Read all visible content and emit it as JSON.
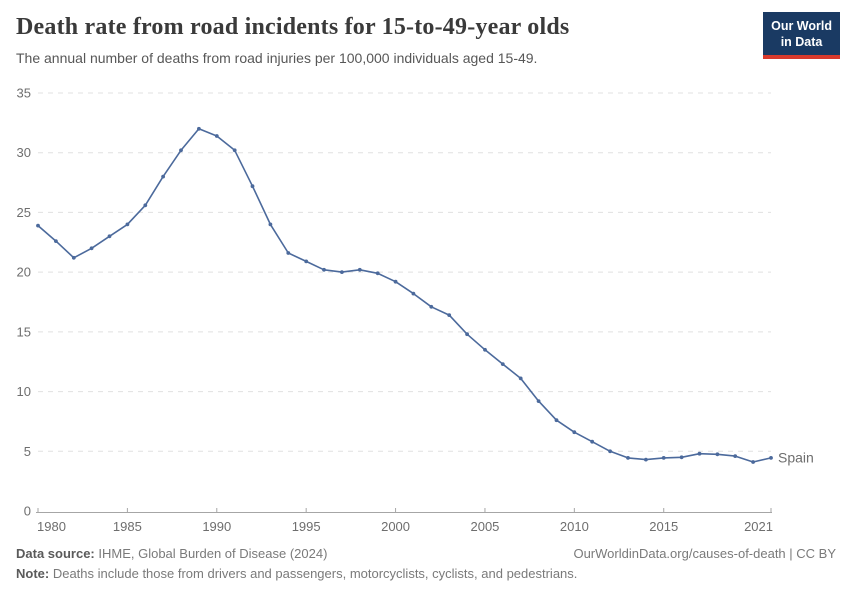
{
  "header": {
    "title": "Death rate from road incidents for 15-to-49-year olds",
    "subtitle": "The annual number of deaths from road injuries per 100,000 individuals aged 15-49.",
    "logo": {
      "line1": "Our World",
      "line2": "in Data"
    }
  },
  "colors": {
    "series_line": "#4C6A9C",
    "grid": "#e0e0e0",
    "axis": "#a6a6a6",
    "tick_text": "#6e6e6e",
    "logo_bg": "#1a3a63",
    "logo_accent": "#d93a2d"
  },
  "chart_data": {
    "type": "line",
    "title": "Death rate from road incidents for 15-to-49-year olds",
    "subtitle": "The annual number of deaths from road injuries per 100,000 individuals aged 15-49.",
    "xlabel": "",
    "ylabel": "",
    "xlim": [
      1980,
      2021
    ],
    "ylim": [
      0,
      35
    ],
    "xticks": [
      1980,
      1985,
      1990,
      1995,
      2000,
      2005,
      2010,
      2015,
      2021
    ],
    "yticks": [
      0,
      5,
      10,
      15,
      20,
      25,
      30,
      35
    ],
    "grid": "horizontal-dashed",
    "legend_position": "end-of-line-label",
    "x": [
      1980,
      1981,
      1982,
      1983,
      1984,
      1985,
      1986,
      1987,
      1988,
      1989,
      1990,
      1991,
      1992,
      1993,
      1994,
      1995,
      1996,
      1997,
      1998,
      1999,
      2000,
      2001,
      2002,
      2003,
      2004,
      2005,
      2006,
      2007,
      2008,
      2009,
      2010,
      2011,
      2012,
      2013,
      2014,
      2015,
      2016,
      2017,
      2018,
      2019,
      2020,
      2021
    ],
    "series": [
      {
        "name": "Spain",
        "color": "#4C6A9C",
        "values": [
          23.9,
          22.6,
          21.2,
          22.0,
          23.0,
          24.0,
          25.6,
          28.0,
          30.2,
          32.0,
          31.4,
          30.2,
          27.2,
          24.0,
          21.6,
          20.9,
          20.2,
          20.0,
          20.2,
          19.9,
          19.2,
          18.2,
          17.1,
          16.4,
          14.8,
          13.5,
          12.3,
          11.1,
          9.2,
          7.6,
          6.6,
          5.8,
          5.0,
          4.45,
          4.3,
          4.45,
          4.5,
          4.8,
          4.75,
          4.6,
          4.1,
          4.45
        ]
      }
    ]
  },
  "footer": {
    "source_label": "Data source:",
    "source_text": " IHME, Global Burden of Disease (2024)",
    "link_text": "OurWorldinData.org/causes-of-death | CC BY",
    "note_label": "Note:",
    "note_text": " Deaths include those from drivers and passengers, motorcyclists, cyclists, and pedestrians."
  }
}
